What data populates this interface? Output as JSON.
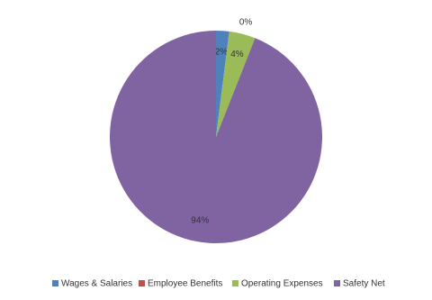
{
  "chart_data": {
    "type": "pie",
    "categories": [
      "Wages & Salaries",
      "Employee Benefits",
      "Operating Expenses",
      "Safety Net"
    ],
    "values": [
      2,
      0,
      4,
      94
    ],
    "value_labels": [
      "2%",
      "0%",
      "4%",
      "94%"
    ],
    "colors": [
      "#4f81bd",
      "#c0504d",
      "#9bbb59",
      "#8064a2"
    ],
    "legend": "bottom"
  }
}
